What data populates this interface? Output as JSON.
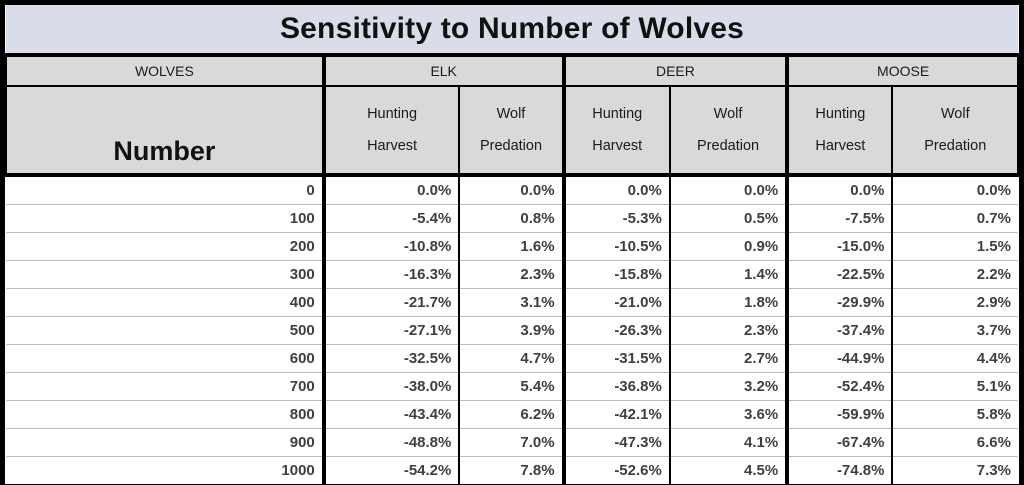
{
  "colors": {
    "title_bg": "#d9dde9",
    "header_bg": "#d9d9d9",
    "border": "#000000",
    "row_separator": "#b7bcc4",
    "data_text": "#3f3f3f"
  },
  "header": {
    "groups": [
      "WOLVES",
      "ELK",
      "DEER",
      "MOOSE"
    ],
    "number_label": "Number",
    "sub": [
      {
        "top": "Hunting",
        "bottom": "Harvest"
      },
      {
        "top": "Wolf",
        "bottom": "Predation"
      }
    ]
  },
  "chart_data": {
    "type": "table",
    "title": "Sensitivity to Number of Wolves",
    "column_groups": [
      "WOLVES",
      "ELK",
      "DEER",
      "MOOSE"
    ],
    "columns": [
      "Wolves Number",
      "Elk Hunting Harvest",
      "Elk Wolf Predation",
      "Deer Hunting Harvest",
      "Deer Wolf Predation",
      "Moose Hunting Harvest",
      "Moose Wolf Predation"
    ],
    "rows": [
      [
        "0",
        "0.0%",
        "0.0%",
        "0.0%",
        "0.0%",
        "0.0%",
        "0.0%"
      ],
      [
        "100",
        "-5.4%",
        "0.8%",
        "-5.3%",
        "0.5%",
        "-7.5%",
        "0.7%"
      ],
      [
        "200",
        "-10.8%",
        "1.6%",
        "-10.5%",
        "0.9%",
        "-15.0%",
        "1.5%"
      ],
      [
        "300",
        "-16.3%",
        "2.3%",
        "-15.8%",
        "1.4%",
        "-22.5%",
        "2.2%"
      ],
      [
        "400",
        "-21.7%",
        "3.1%",
        "-21.0%",
        "1.8%",
        "-29.9%",
        "2.9%"
      ],
      [
        "500",
        "-27.1%",
        "3.9%",
        "-26.3%",
        "2.3%",
        "-37.4%",
        "3.7%"
      ],
      [
        "600",
        "-32.5%",
        "4.7%",
        "-31.5%",
        "2.7%",
        "-44.9%",
        "4.4%"
      ],
      [
        "700",
        "-38.0%",
        "5.4%",
        "-36.8%",
        "3.2%",
        "-52.4%",
        "5.1%"
      ],
      [
        "800",
        "-43.4%",
        "6.2%",
        "-42.1%",
        "3.6%",
        "-59.9%",
        "5.8%"
      ],
      [
        "900",
        "-48.8%",
        "7.0%",
        "-47.3%",
        "4.1%",
        "-67.4%",
        "6.6%"
      ],
      [
        "1000",
        "-54.2%",
        "7.8%",
        "-52.6%",
        "4.5%",
        "-74.8%",
        "7.3%"
      ]
    ]
  }
}
